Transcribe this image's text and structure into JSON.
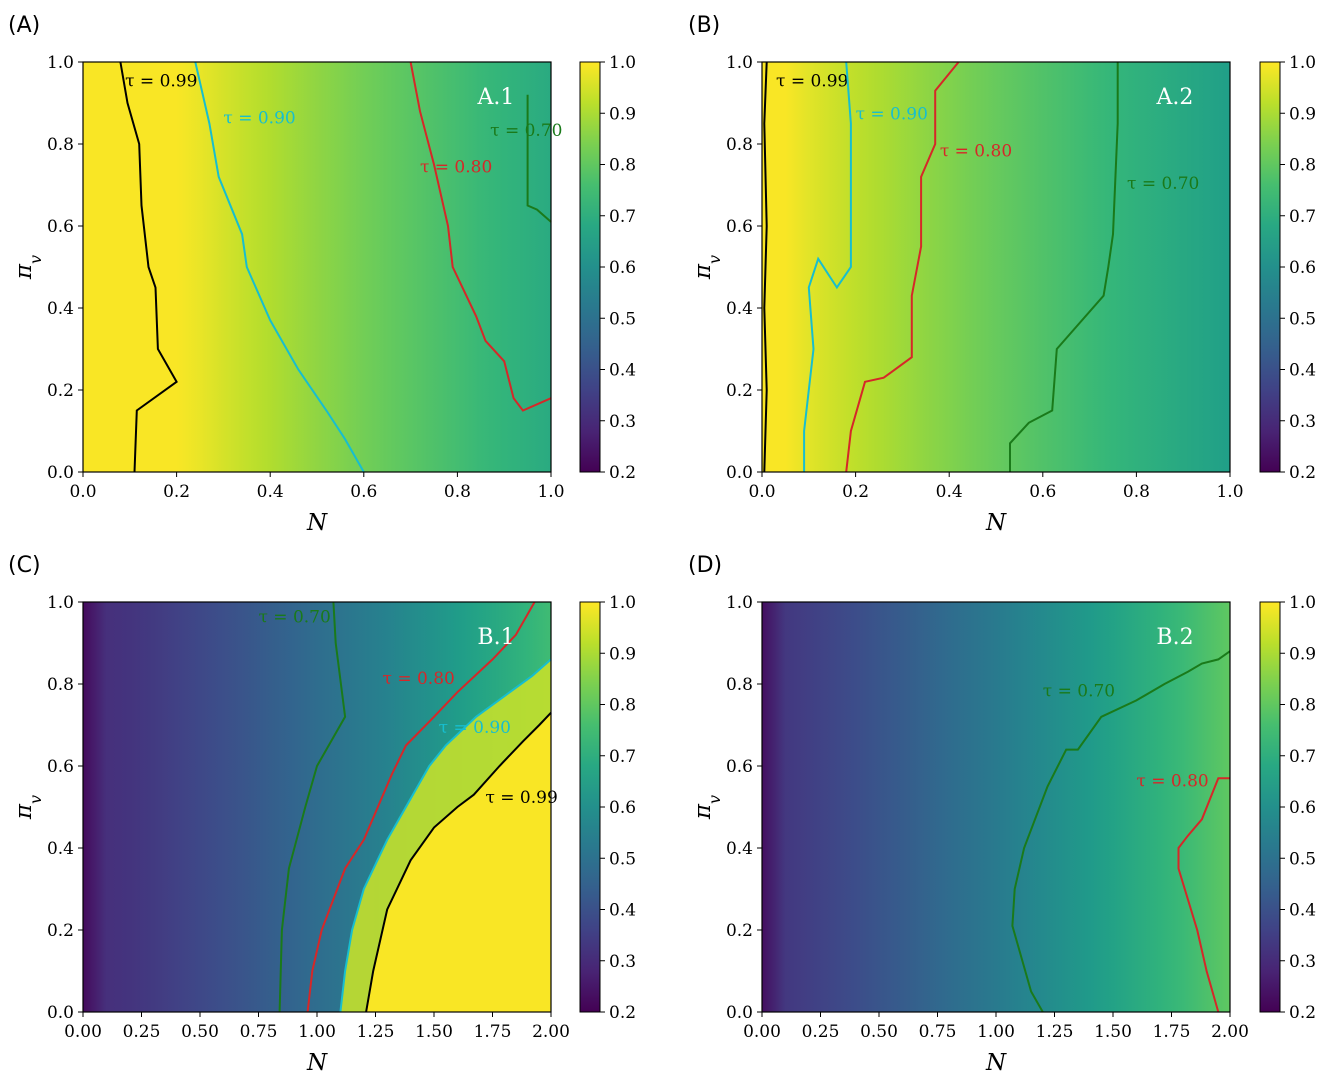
{
  "colorbar": {
    "ticks": [
      "0.2",
      "0.3",
      "0.4",
      "0.5",
      "0.6",
      "0.7",
      "0.8",
      "0.9",
      "1.0"
    ],
    "tick_values": [
      0.2,
      0.3,
      0.4,
      0.5,
      0.6,
      0.7,
      0.8,
      0.9,
      1.0
    ],
    "range": [
      0.2,
      1.0
    ],
    "colormap": "viridis"
  },
  "contour_colors": {
    "0.99": "#000000",
    "0.90": "#17becf",
    "0.80": "#d62728",
    "0.70": "#1a7a1a"
  },
  "contour_label_prefix": "τ = ",
  "chart_data": [
    {
      "type": "heatmap",
      "panel_letter": "(A)",
      "panel_tag": "A.1",
      "xlabel": "N",
      "ylabel": "π_v",
      "xlim": [
        0,
        1
      ],
      "ylim": [
        0,
        1
      ],
      "xticks": [
        "0.0",
        "0.2",
        "0.4",
        "0.6",
        "0.8",
        "1.0"
      ],
      "xtick_values": [
        0,
        0.2,
        0.4,
        0.6,
        0.8,
        1.0
      ],
      "yticks": [
        "0.0",
        "0.2",
        "0.4",
        "0.6",
        "0.8",
        "1.0"
      ],
      "field": {
        "kind": "decreasing_right",
        "high_n": 0.22,
        "width_n": 0.85
      },
      "contours": [
        {
          "level": "0.99",
          "label": "0.99",
          "label_pos": [
            0.09,
            0.94
          ],
          "points": [
            [
              0.08,
              1.0
            ],
            [
              0.095,
              0.9
            ],
            [
              0.12,
              0.8
            ],
            [
              0.125,
              0.65
            ],
            [
              0.14,
              0.5
            ],
            [
              0.155,
              0.45
            ],
            [
              0.16,
              0.3
            ],
            [
              0.2,
              0.22
            ],
            [
              0.115,
              0.15
            ],
            [
              0.11,
              0.0
            ]
          ]
        },
        {
          "level": "0.90",
          "label": "0.90",
          "label_pos": [
            0.3,
            0.85
          ],
          "points": [
            [
              0.24,
              1.0
            ],
            [
              0.27,
              0.85
            ],
            [
              0.29,
              0.72
            ],
            [
              0.34,
              0.58
            ],
            [
              0.35,
              0.5
            ],
            [
              0.4,
              0.37
            ],
            [
              0.42,
              0.33
            ],
            [
              0.46,
              0.25
            ],
            [
              0.52,
              0.15
            ],
            [
              0.56,
              0.08
            ],
            [
              0.6,
              0.0
            ]
          ]
        },
        {
          "level": "0.80",
          "label": "0.80",
          "label_pos": [
            0.72,
            0.73
          ],
          "points": [
            [
              0.7,
              1.0
            ],
            [
              0.72,
              0.88
            ],
            [
              0.75,
              0.75
            ],
            [
              0.78,
              0.6
            ],
            [
              0.79,
              0.5
            ],
            [
              0.84,
              0.38
            ],
            [
              0.86,
              0.32
            ],
            [
              0.9,
              0.27
            ],
            [
              0.92,
              0.18
            ],
            [
              0.94,
              0.15
            ],
            [
              1.0,
              0.18
            ]
          ]
        },
        {
          "level": "0.70",
          "label": "0.70",
          "label_pos": [
            0.87,
            0.82
          ],
          "points": [
            [
              0.95,
              0.92
            ],
            [
              0.95,
              0.72
            ],
            [
              0.95,
              0.65
            ],
            [
              0.97,
              0.64
            ],
            [
              1.0,
              0.61
            ]
          ]
        }
      ]
    },
    {
      "type": "heatmap",
      "panel_letter": "(B)",
      "panel_tag": "A.2",
      "xlabel": "N",
      "ylabel": "π_v",
      "xlim": [
        0,
        1
      ],
      "ylim": [
        0,
        1
      ],
      "xticks": [
        "0.0",
        "0.2",
        "0.4",
        "0.6",
        "0.8",
        "1.0"
      ],
      "xtick_values": [
        0,
        0.2,
        0.4,
        0.6,
        0.8,
        1.0
      ],
      "yticks": [
        "0.0",
        "0.2",
        "0.4",
        "0.6",
        "0.8",
        "1.0"
      ],
      "field": {
        "kind": "decreasing_right",
        "high_n": 0.05,
        "width_n": 0.9
      },
      "contours": [
        {
          "level": "0.99",
          "label": "0.99",
          "label_pos": [
            0.03,
            0.94
          ],
          "points": [
            [
              0.01,
              1.0
            ],
            [
              0.005,
              0.85
            ],
            [
              0.01,
              0.6
            ],
            [
              0.005,
              0.4
            ],
            [
              0.01,
              0.2
            ],
            [
              0.005,
              0.0
            ]
          ]
        },
        {
          "level": "0.90",
          "label": "0.90",
          "label_pos": [
            0.2,
            0.86
          ],
          "points": [
            [
              0.18,
              1.0
            ],
            [
              0.19,
              0.85
            ],
            [
              0.19,
              0.6
            ],
            [
              0.19,
              0.5
            ],
            [
              0.16,
              0.45
            ],
            [
              0.12,
              0.52
            ],
            [
              0.1,
              0.45
            ],
            [
              0.11,
              0.3
            ],
            [
              0.09,
              0.1
            ],
            [
              0.09,
              0.0
            ]
          ]
        },
        {
          "level": "0.80",
          "label": "0.80",
          "label_pos": [
            0.38,
            0.77
          ],
          "points": [
            [
              0.42,
              1.0
            ],
            [
              0.37,
              0.93
            ],
            [
              0.37,
              0.8
            ],
            [
              0.34,
              0.72
            ],
            [
              0.34,
              0.55
            ],
            [
              0.32,
              0.43
            ],
            [
              0.32,
              0.28
            ],
            [
              0.26,
              0.23
            ],
            [
              0.22,
              0.22
            ],
            [
              0.19,
              0.1
            ],
            [
              0.18,
              0.0
            ]
          ]
        },
        {
          "level": "0.70",
          "label": "0.70",
          "label_pos": [
            0.78,
            0.69
          ],
          "points": [
            [
              0.76,
              1.0
            ],
            [
              0.76,
              0.85
            ],
            [
              0.75,
              0.58
            ],
            [
              0.74,
              0.5
            ],
            [
              0.73,
              0.43
            ],
            [
              0.63,
              0.3
            ],
            [
              0.62,
              0.15
            ],
            [
              0.57,
              0.12
            ],
            [
              0.53,
              0.07
            ],
            [
              0.53,
              0.0
            ]
          ]
        }
      ]
    },
    {
      "type": "heatmap",
      "panel_letter": "(C)",
      "panel_tag": "B.1",
      "xlabel": "N",
      "ylabel": "π_v",
      "xlim": [
        0,
        2
      ],
      "ylim": [
        0,
        1
      ],
      "xticks": [
        "0.00",
        "0.25",
        "0.50",
        "0.75",
        "1.00",
        "1.25",
        "1.50",
        "1.75",
        "2.00"
      ],
      "xtick_values": [
        0,
        0.25,
        0.5,
        0.75,
        1.0,
        1.25,
        1.5,
        1.75,
        2.0
      ],
      "yticks": [
        "0.0",
        "0.2",
        "0.4",
        "0.6",
        "0.8",
        "1.0"
      ],
      "field": {
        "kind": "increasing_right",
        "low_n": 0.02
      },
      "contours": [
        {
          "level": "0.70",
          "label": "0.70",
          "label_pos": [
            0.75,
            0.95
          ],
          "points": [
            [
              1.07,
              1.0
            ],
            [
              1.08,
              0.9
            ],
            [
              1.12,
              0.72
            ],
            [
              1.05,
              0.65
            ],
            [
              1.0,
              0.6
            ],
            [
              0.95,
              0.5
            ],
            [
              0.88,
              0.35
            ],
            [
              0.85,
              0.2
            ],
            [
              0.84,
              0.0
            ]
          ]
        },
        {
          "level": "0.80",
          "label": "0.80",
          "label_pos": [
            1.28,
            0.8
          ],
          "points": [
            [
              1.93,
              1.0
            ],
            [
              1.85,
              0.92
            ],
            [
              1.75,
              0.86
            ],
            [
              1.6,
              0.78
            ],
            [
              1.5,
              0.72
            ],
            [
              1.38,
              0.65
            ],
            [
              1.32,
              0.58
            ],
            [
              1.2,
              0.42
            ],
            [
              1.12,
              0.35
            ],
            [
              1.02,
              0.2
            ],
            [
              0.98,
              0.1
            ],
            [
              0.96,
              0.0
            ]
          ]
        },
        {
          "level": "0.90",
          "label": "0.90",
          "label_pos": [
            1.52,
            0.68
          ],
          "points": [
            [
              2.0,
              0.86
            ],
            [
              1.92,
              0.82
            ],
            [
              1.8,
              0.77
            ],
            [
              1.68,
              0.72
            ],
            [
              1.55,
              0.65
            ],
            [
              1.48,
              0.6
            ],
            [
              1.38,
              0.5
            ],
            [
              1.3,
              0.42
            ],
            [
              1.2,
              0.3
            ],
            [
              1.15,
              0.2
            ],
            [
              1.12,
              0.1
            ],
            [
              1.1,
              0.0
            ]
          ]
        },
        {
          "level": "0.99",
          "label": "0.99",
          "label_pos": [
            1.72,
            0.51
          ],
          "points": [
            [
              2.0,
              0.73
            ],
            [
              1.95,
              0.7
            ],
            [
              1.88,
              0.66
            ],
            [
              1.78,
              0.6
            ],
            [
              1.67,
              0.53
            ],
            [
              1.6,
              0.5
            ],
            [
              1.5,
              0.45
            ],
            [
              1.4,
              0.37
            ],
            [
              1.3,
              0.25
            ],
            [
              1.24,
              0.1
            ],
            [
              1.21,
              0.0
            ]
          ]
        }
      ]
    },
    {
      "type": "heatmap",
      "panel_letter": "(D)",
      "panel_tag": "B.2",
      "xlabel": "N",
      "ylabel": "π_v",
      "xlim": [
        0,
        2
      ],
      "ylim": [
        0,
        1
      ],
      "xticks": [
        "0.00",
        "0.25",
        "0.50",
        "0.75",
        "1.00",
        "1.25",
        "1.50",
        "1.75",
        "2.00"
      ],
      "xtick_values": [
        0,
        0.25,
        0.5,
        0.75,
        1.0,
        1.25,
        1.5,
        1.75,
        2.0
      ],
      "yticks": [
        "0.0",
        "0.2",
        "0.4",
        "0.6",
        "0.8",
        "1.0"
      ],
      "field": {
        "kind": "increasing_right_soft"
      },
      "contours": [
        {
          "level": "0.70",
          "label": "0.70",
          "label_pos": [
            1.2,
            0.77
          ],
          "points": [
            [
              2.0,
              0.88
            ],
            [
              1.95,
              0.86
            ],
            [
              1.88,
              0.85
            ],
            [
              1.82,
              0.83
            ],
            [
              1.72,
              0.8
            ],
            [
              1.6,
              0.76
            ],
            [
              1.45,
              0.72
            ],
            [
              1.35,
              0.64
            ],
            [
              1.3,
              0.64
            ],
            [
              1.22,
              0.55
            ],
            [
              1.12,
              0.4
            ],
            [
              1.08,
              0.3
            ],
            [
              1.07,
              0.21
            ],
            [
              1.15,
              0.05
            ],
            [
              1.2,
              0.0
            ]
          ]
        },
        {
          "level": "0.80",
          "label": "0.80",
          "label_pos": [
            1.6,
            0.55
          ],
          "points": [
            [
              2.0,
              0.57
            ],
            [
              1.95,
              0.57
            ],
            [
              1.88,
              0.47
            ],
            [
              1.82,
              0.43
            ],
            [
              1.78,
              0.4
            ],
            [
              1.78,
              0.35
            ],
            [
              1.86,
              0.2
            ],
            [
              1.9,
              0.1
            ],
            [
              1.95,
              0.0
            ]
          ]
        }
      ]
    }
  ]
}
